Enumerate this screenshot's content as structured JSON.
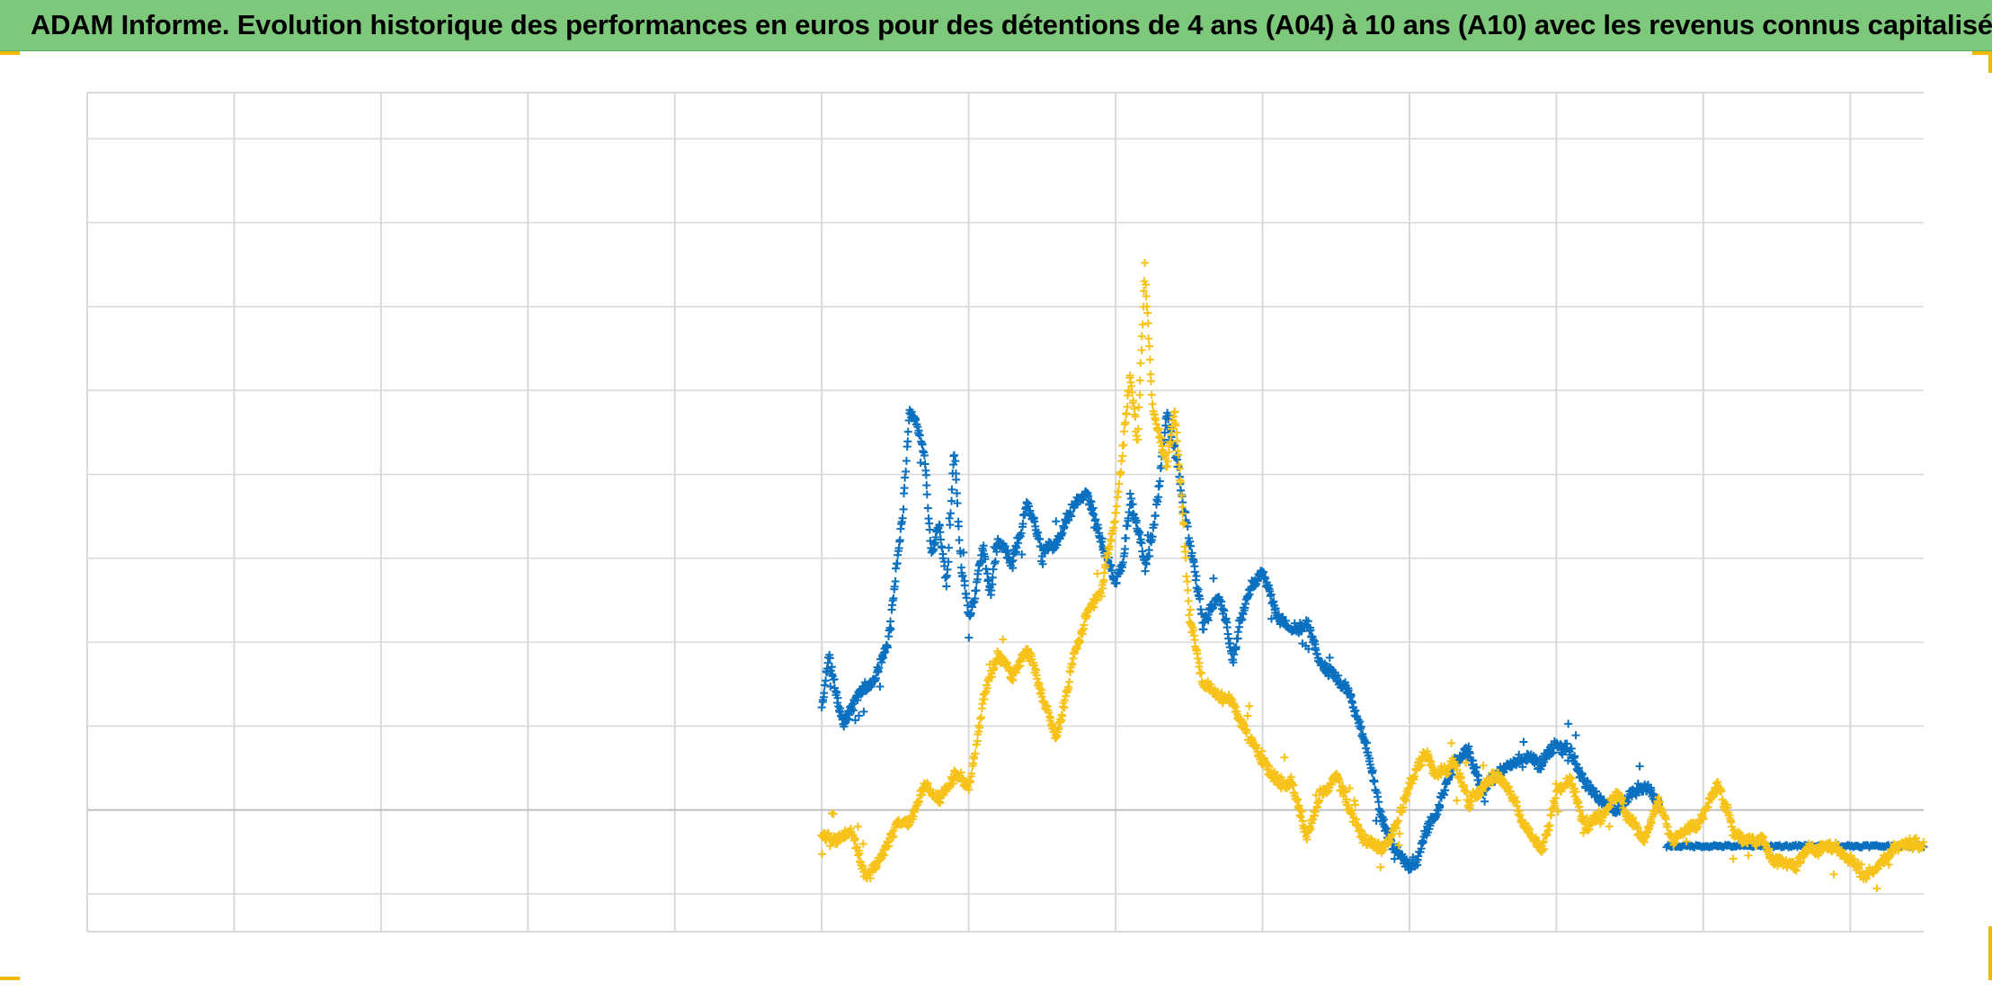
{
  "title": "ADAM Informe. Evolution historique des performances en euros pour des détentions de 4 ans (A04) à 10 ans (A10) avec les revenus connus capitalisés",
  "colors": {
    "title_bar": "#7ec87c",
    "series_blue": "#0a70bf",
    "series_yellow": "#f7c21a",
    "grid": "#d9d9d9",
    "zero_line": "#bfbfbf",
    "corner_accent": "#f2b800"
  },
  "chart_data": {
    "type": "scatter",
    "title": "ADAM Informe. Evolution historique des performances en euros pour des détentions de 4 ans (A04) à 10 ans (A10) avec les revenus connus capitalisés",
    "xlabel": "",
    "ylabel": "",
    "xlim": [
      0,
      12.5
    ],
    "ylim": [
      -1.45,
      8.55
    ],
    "x_gridlines": [
      0,
      1,
      2,
      3,
      4,
      5,
      6,
      7,
      8,
      9,
      10,
      11,
      12
    ],
    "y_gridlines": [
      -1,
      0,
      1,
      2,
      3,
      4,
      5,
      6,
      7,
      8
    ],
    "zero_line": 0,
    "grid": true,
    "tick_labels_visible": false,
    "legend": "none",
    "marker": "plus",
    "series": [
      {
        "color": "#0a70bf",
        "anchors_x": [
          5.0,
          5.05,
          5.1,
          5.15,
          5.2,
          5.25,
          5.35,
          5.45,
          5.5,
          5.55,
          5.6,
          5.65,
          5.7,
          5.75,
          5.8,
          5.85,
          5.9,
          5.95,
          6.0,
          6.05,
          6.1,
          6.15,
          6.2,
          6.3,
          6.4,
          6.5,
          6.6,
          6.7,
          6.8,
          6.9,
          7.0,
          7.05,
          7.1,
          7.15,
          7.2,
          7.25,
          7.3,
          7.35,
          7.4,
          7.45,
          7.5,
          7.6,
          7.7,
          7.8,
          7.9,
          8.0,
          8.1,
          8.2,
          8.3,
          8.4,
          8.5,
          8.6,
          8.7,
          8.8,
          8.9,
          9.0,
          9.05,
          9.1,
          9.2,
          9.3,
          9.4,
          9.5,
          9.6,
          9.7,
          9.8,
          9.9,
          10.0,
          10.1,
          10.2,
          10.3,
          10.4,
          10.5,
          10.6,
          10.7
        ],
        "anchors_y": [
          1.2,
          1.8,
          1.3,
          1.0,
          1.2,
          1.4,
          1.5,
          2.0,
          2.8,
          3.5,
          4.8,
          4.5,
          4.2,
          3.0,
          3.4,
          2.6,
          4.3,
          2.9,
          2.3,
          2.6,
          3.1,
          2.6,
          3.2,
          3.0,
          3.6,
          3.1,
          3.2,
          3.6,
          3.8,
          3.2,
          2.7,
          3.0,
          3.8,
          3.4,
          2.9,
          3.3,
          3.9,
          4.7,
          4.3,
          3.7,
          3.2,
          2.2,
          2.6,
          1.8,
          2.6,
          2.8,
          2.3,
          2.2,
          2.2,
          1.8,
          1.6,
          1.4,
          0.8,
          0.0,
          -0.5,
          -0.7,
          -0.6,
          -0.4,
          0.0,
          0.5,
          0.7,
          0.3,
          0.4,
          0.5,
          0.6,
          0.5,
          0.8,
          0.7,
          0.3,
          0.1,
          0.0,
          0.2,
          0.3,
          0.1
        ],
        "flat_tail": {
          "x_start": 10.75,
          "x_end": 12.5,
          "y": -0.43
        }
      },
      {
        "color": "#f7c21a",
        "anchors_x": [
          5.0,
          5.1,
          5.2,
          5.3,
          5.35,
          5.4,
          5.5,
          5.6,
          5.7,
          5.8,
          5.9,
          6.0,
          6.05,
          6.1,
          6.2,
          6.3,
          6.4,
          6.5,
          6.6,
          6.7,
          6.8,
          6.9,
          7.0,
          7.05,
          7.1,
          7.15,
          7.2,
          7.25,
          7.3,
          7.35,
          7.4,
          7.45,
          7.5,
          7.6,
          7.7,
          7.8,
          7.9,
          8.0,
          8.1,
          8.2,
          8.3,
          8.4,
          8.5,
          8.6,
          8.7,
          8.8,
          8.9,
          9.0,
          9.1,
          9.2,
          9.3,
          9.4,
          9.5,
          9.6,
          9.7,
          9.8,
          9.9,
          10.0,
          10.1,
          10.2,
          10.3,
          10.4,
          10.5,
          10.6,
          10.7,
          10.8,
          10.9,
          11.0,
          11.1,
          11.2,
          11.3,
          11.4,
          11.5,
          11.6,
          11.7,
          11.8,
          11.9,
          12.0,
          12.1,
          12.2,
          12.3,
          12.4,
          12.5
        ],
        "anchors_y": [
          -0.3,
          -0.4,
          -0.3,
          -0.8,
          -0.7,
          -0.6,
          -0.2,
          -0.1,
          0.3,
          0.1,
          0.5,
          0.2,
          0.7,
          1.4,
          1.8,
          1.6,
          1.9,
          1.4,
          0.9,
          1.7,
          2.3,
          2.6,
          3.5,
          4.3,
          5.2,
          4.4,
          6.4,
          4.8,
          4.5,
          4.1,
          4.8,
          3.8,
          2.3,
          1.5,
          1.3,
          1.3,
          0.9,
          0.5,
          0.4,
          0.3,
          -0.3,
          0.2,
          0.4,
          0.0,
          -0.4,
          -0.5,
          -0.2,
          0.3,
          0.7,
          0.4,
          0.6,
          0.1,
          0.3,
          0.4,
          0.2,
          -0.2,
          -0.5,
          0.1,
          0.3,
          -0.2,
          -0.1,
          0.2,
          -0.1,
          -0.3,
          0.1,
          -0.4,
          -0.2,
          -0.1,
          0.3,
          -0.2,
          -0.4,
          -0.3,
          -0.6,
          -0.7,
          -0.5,
          -0.4,
          -0.5,
          -0.6,
          -0.8,
          -0.6,
          -0.5,
          -0.4,
          -0.4
        ]
      }
    ]
  }
}
